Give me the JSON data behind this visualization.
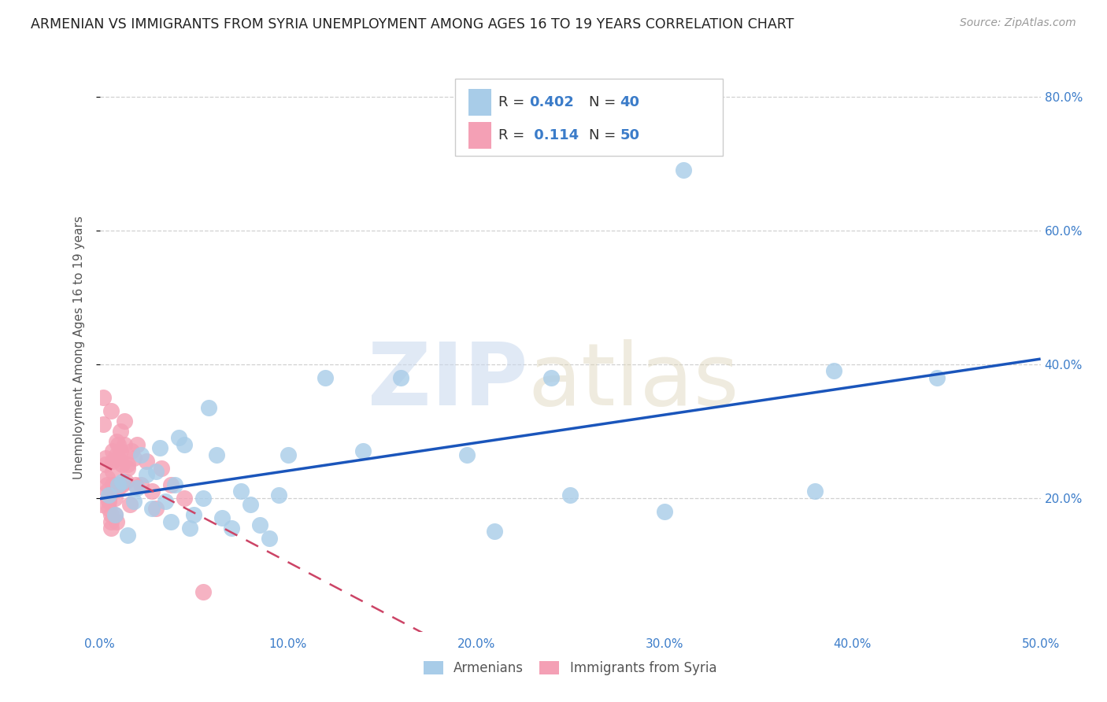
{
  "title": "ARMENIAN VS IMMIGRANTS FROM SYRIA UNEMPLOYMENT AMONG AGES 16 TO 19 YEARS CORRELATION CHART",
  "source": "Source: ZipAtlas.com",
  "ylabel": "Unemployment Among Ages 16 to 19 years",
  "xmin": 0.0,
  "xmax": 0.5,
  "ymin": 0.0,
  "ymax": 0.85,
  "xtick_vals": [
    0.0,
    0.1,
    0.2,
    0.3,
    0.4,
    0.5
  ],
  "ytick_vals": [
    0.2,
    0.4,
    0.6,
    0.8
  ],
  "armenian_color": "#a8cce8",
  "syria_color": "#f4a0b5",
  "armenian_line_color": "#1a55bb",
  "syria_line_color": "#cc4466",
  "tick_label_color": "#3b7cc9",
  "grid_color": "#cccccc",
  "bg_color": "#ffffff",
  "title_color": "#222222",
  "axis_label_color": "#555555",
  "legend_r_color": "#3b7cc9",
  "legend_n_color": "#3b7cc9",
  "armenian_x": [
    0.005,
    0.008,
    0.01,
    0.012,
    0.015,
    0.018,
    0.02,
    0.022,
    0.025,
    0.028,
    0.03,
    0.032,
    0.035,
    0.038,
    0.04,
    0.042,
    0.045,
    0.048,
    0.05,
    0.055,
    0.058,
    0.062,
    0.065,
    0.07,
    0.075,
    0.08,
    0.085,
    0.09,
    0.095,
    0.1,
    0.12,
    0.14,
    0.16,
    0.195,
    0.21,
    0.24,
    0.25,
    0.3,
    0.31,
    0.38,
    0.39,
    0.445
  ],
  "armenian_y": [
    0.205,
    0.175,
    0.22,
    0.225,
    0.145,
    0.195,
    0.215,
    0.265,
    0.235,
    0.185,
    0.24,
    0.275,
    0.195,
    0.165,
    0.22,
    0.29,
    0.28,
    0.155,
    0.175,
    0.2,
    0.335,
    0.265,
    0.17,
    0.155,
    0.21,
    0.19,
    0.16,
    0.14,
    0.205,
    0.265,
    0.38,
    0.27,
    0.38,
    0.265,
    0.15,
    0.38,
    0.205,
    0.18,
    0.69,
    0.21,
    0.39,
    0.38
  ],
  "syria_x": [
    0.001,
    0.002,
    0.002,
    0.003,
    0.003,
    0.004,
    0.004,
    0.004,
    0.005,
    0.005,
    0.005,
    0.006,
    0.006,
    0.006,
    0.006,
    0.007,
    0.007,
    0.007,
    0.007,
    0.008,
    0.008,
    0.008,
    0.009,
    0.009,
    0.009,
    0.01,
    0.01,
    0.01,
    0.011,
    0.011,
    0.012,
    0.012,
    0.013,
    0.013,
    0.014,
    0.015,
    0.015,
    0.016,
    0.017,
    0.018,
    0.019,
    0.02,
    0.022,
    0.025,
    0.028,
    0.03,
    0.033,
    0.038,
    0.045,
    0.055
  ],
  "syria_y": [
    0.19,
    0.35,
    0.31,
    0.26,
    0.25,
    0.23,
    0.22,
    0.21,
    0.2,
    0.195,
    0.185,
    0.175,
    0.165,
    0.155,
    0.33,
    0.27,
    0.255,
    0.24,
    0.22,
    0.215,
    0.2,
    0.175,
    0.165,
    0.285,
    0.265,
    0.28,
    0.26,
    0.215,
    0.3,
    0.27,
    0.25,
    0.22,
    0.315,
    0.28,
    0.225,
    0.25,
    0.245,
    0.19,
    0.27,
    0.26,
    0.22,
    0.28,
    0.22,
    0.255,
    0.21,
    0.185,
    0.245,
    0.22,
    0.2,
    0.06
  ]
}
